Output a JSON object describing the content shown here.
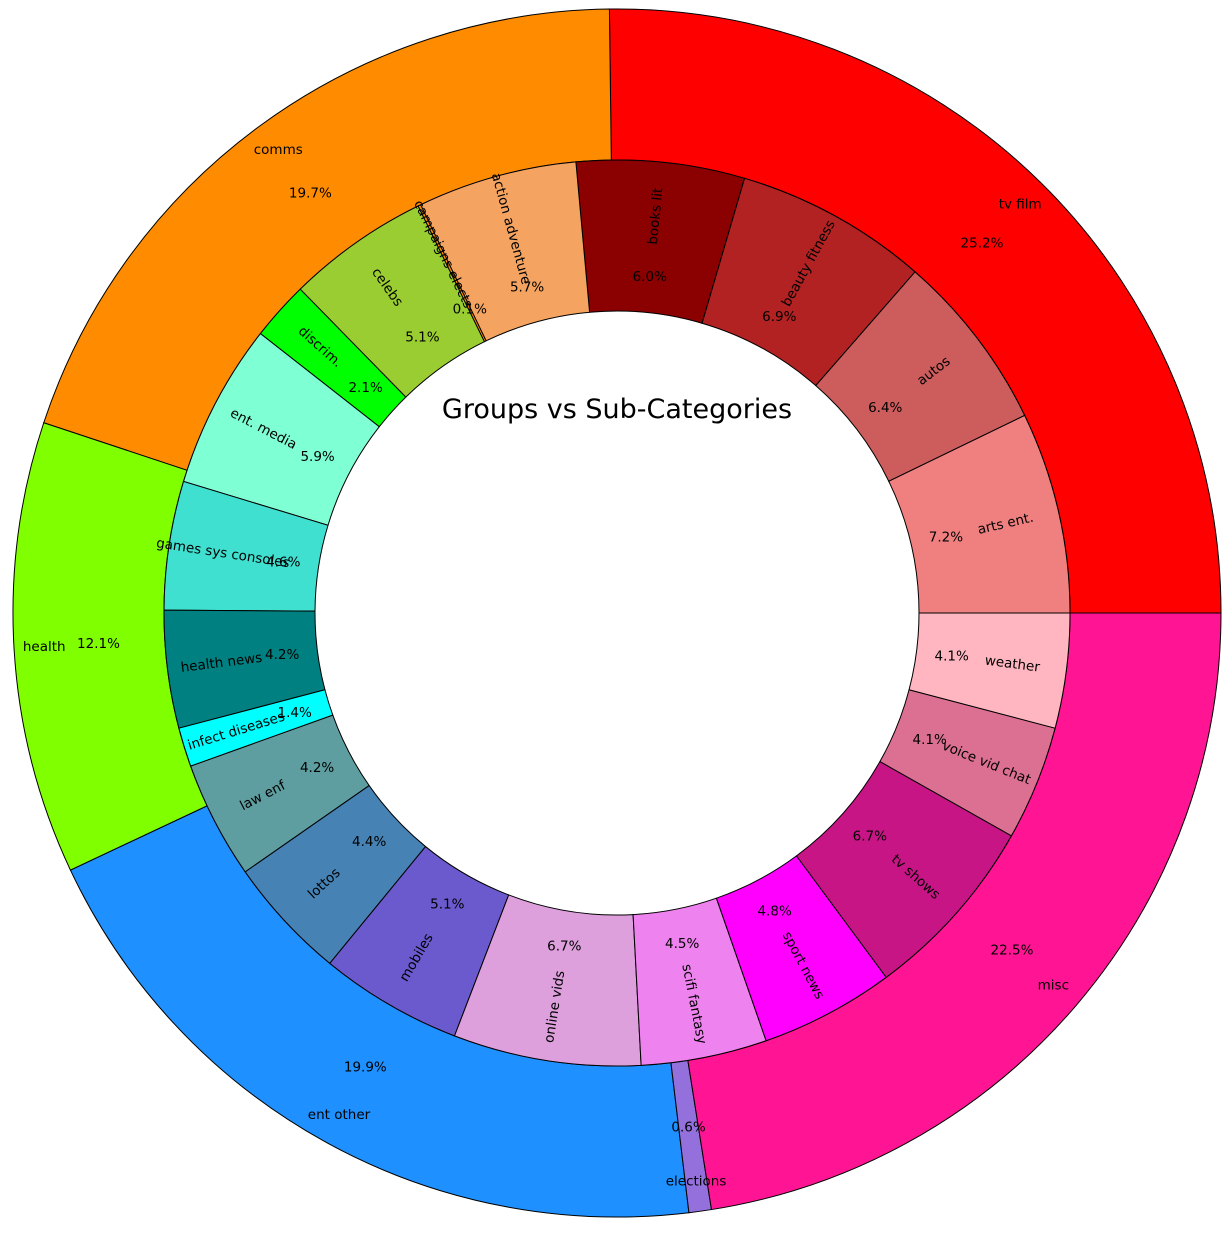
{
  "chart_data": {
    "type": "pie",
    "title": "Groups vs Sub-Categories",
    "outer": [
      {
        "label": "tv film",
        "pct_label": "25.2%",
        "value": 25.2,
        "color": "#FF0000"
      },
      {
        "label": "comms",
        "pct_label": "19.7%",
        "value": 19.7,
        "color": "#FF8C00"
      },
      {
        "label": "health",
        "pct_label": "12.1%",
        "value": 12.1,
        "color": "#7FFF00"
      },
      {
        "label": "ent other",
        "pct_label": "19.9%",
        "value": 19.9,
        "color": "#1E90FF"
      },
      {
        "label": "elections",
        "pct_label": "0.6%",
        "value": 0.6,
        "color": "#9370DB"
      },
      {
        "label": "misc",
        "pct_label": "22.5%",
        "value": 22.5,
        "color": "#FF1493"
      }
    ],
    "inner": [
      {
        "label": "arts ent.",
        "pct_label": "7.2%",
        "value": 7.2,
        "color": "#F08080"
      },
      {
        "label": "autos",
        "pct_label": "6.4%",
        "value": 6.4,
        "color": "#CD5C5C"
      },
      {
        "label": "beauty fitness",
        "pct_label": "6.9%",
        "value": 6.9,
        "color": "#B22222"
      },
      {
        "label": "books lit",
        "pct_label": "6.0%",
        "value": 6.0,
        "color": "#8B0000"
      },
      {
        "label": "action adventure",
        "pct_label": "5.7%",
        "value": 5.7,
        "color": "#F4A460"
      },
      {
        "label": "campaigns elects",
        "pct_label": "0.1%",
        "value": 0.1,
        "color": "#FF8C00"
      },
      {
        "label": "celebs",
        "pct_label": "5.1%",
        "value": 5.1,
        "color": "#9ACD32"
      },
      {
        "label": "discrim.",
        "pct_label": "2.1%",
        "value": 2.1,
        "color": "#00FF00"
      },
      {
        "label": "ent. media",
        "pct_label": "5.9%",
        "value": 5.9,
        "color": "#7FFFD4"
      },
      {
        "label": "games sys consoles",
        "pct_label": "4.6%",
        "value": 4.6,
        "color": "#40E0D0"
      },
      {
        "label": "health news",
        "pct_label": "4.2%",
        "value": 4.2,
        "color": "#008080"
      },
      {
        "label": "infect diseases",
        "pct_label": "1.4%",
        "value": 1.4,
        "color": "#00FFFF"
      },
      {
        "label": "law enf",
        "pct_label": "4.2%",
        "value": 4.2,
        "color": "#5F9EA0"
      },
      {
        "label": "lottos",
        "pct_label": "4.4%",
        "value": 4.4,
        "color": "#4682B4"
      },
      {
        "label": "mobiles",
        "pct_label": "5.1%",
        "value": 5.1,
        "color": "#6A5ACD"
      },
      {
        "label": "online vids",
        "pct_label": "6.7%",
        "value": 6.7,
        "color": "#DDA0DD"
      },
      {
        "label": "scifi fantasy",
        "pct_label": "4.5%",
        "value": 4.5,
        "color": "#EE82EE"
      },
      {
        "label": "sport news",
        "pct_label": "4.8%",
        "value": 4.8,
        "color": "#FF00FF"
      },
      {
        "label": "tv shows",
        "pct_label": "6.7%",
        "value": 6.7,
        "color": "#C71585"
      },
      {
        "label": "voice vid chat",
        "pct_label": "4.1%",
        "value": 4.1,
        "color": "#DB7093"
      },
      {
        "label": "weather",
        "pct_label": "4.1%",
        "value": 4.1,
        "color": "#FFB6C1"
      }
    ]
  }
}
